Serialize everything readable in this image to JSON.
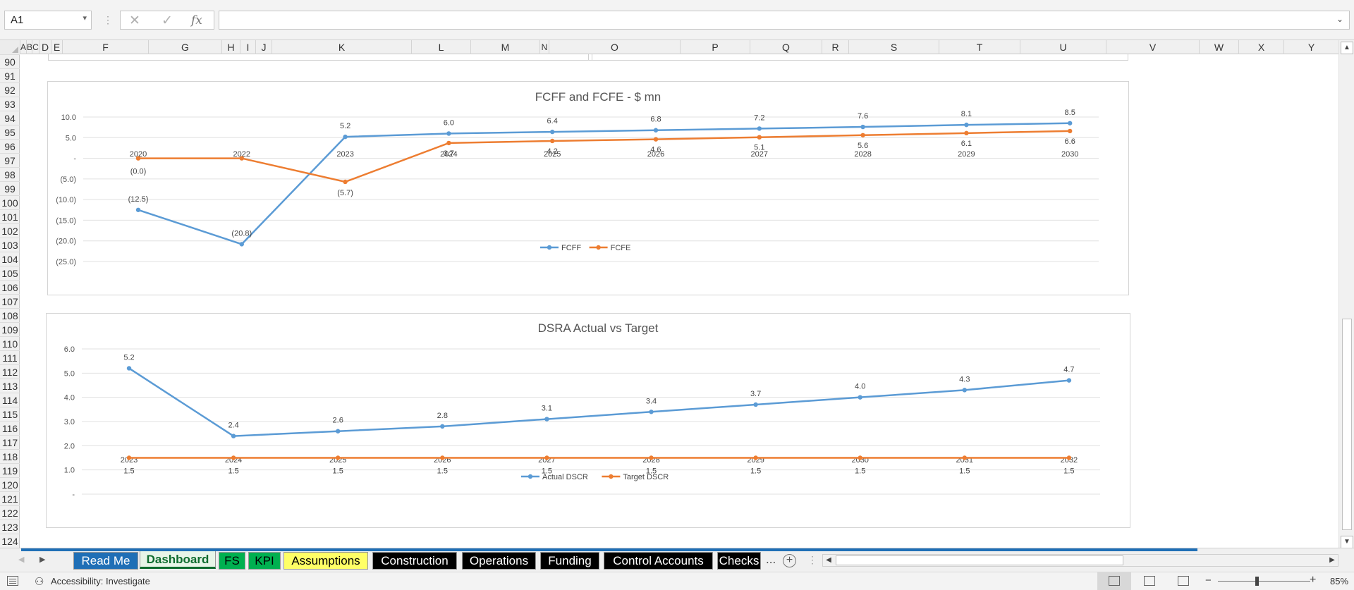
{
  "formula_bar": {
    "name_box": "A1",
    "cancel_glyph": "✕",
    "enter_glyph": "✓",
    "fx_label": "fx",
    "formula": ""
  },
  "columns": [
    "A",
    "B",
    "C",
    "D",
    "E",
    "F",
    "G",
    "H",
    "I",
    "J",
    "K",
    "L",
    "M",
    "N",
    "O",
    "P",
    "Q",
    "R",
    "S",
    "T",
    "U",
    "V",
    "W",
    "X",
    "Y"
  ],
  "rows": [
    "90",
    "91",
    "92",
    "93",
    "94",
    "95",
    "96",
    "97",
    "98",
    "99",
    "100",
    "101",
    "102",
    "103",
    "104",
    "105",
    "106",
    "107",
    "108",
    "109",
    "110",
    "111",
    "112",
    "113",
    "114",
    "115",
    "116",
    "117",
    "118",
    "119",
    "120",
    "121",
    "122",
    "123",
    "124"
  ],
  "charts": [
    {
      "title": "FCFF and FCFE - $ mn",
      "chart_data": {
        "type": "line",
        "title": "FCFF and FCFE - $ mn",
        "categories": [
          "2020",
          "2022",
          "2023",
          "2024",
          "2025",
          "2026",
          "2027",
          "2028",
          "2029",
          "2030"
        ],
        "series": [
          {
            "name": "FCFF",
            "color": "#5b9bd5",
            "values": [
              -12.5,
              -20.8,
              5.2,
              6.0,
              6.4,
              6.8,
              7.2,
              7.6,
              8.1,
              8.5
            ],
            "labels": [
              "(12.5)",
              "(20.8)",
              "5.2",
              "6.0",
              "6.4",
              "6.8",
              "7.2",
              "7.6",
              "8.1",
              "8.5"
            ]
          },
          {
            "name": "FCFE",
            "color": "#ed7d31",
            "values": [
              0,
              0,
              -5.7,
              3.7,
              4.2,
              4.6,
              5.1,
              5.6,
              6.1,
              6.6
            ],
            "labels": [
              "(0.0)",
              "",
              "(5.7)",
              "3.7",
              "4.2",
              "4.6",
              "5.1",
              "5.6",
              "6.1",
              "6.6"
            ]
          }
        ],
        "yticks": [
          10,
          5,
          0,
          -5,
          -10,
          -15,
          -20,
          -25
        ],
        "ytick_labels": [
          "10.0",
          "5.0",
          "-",
          "(5.0)",
          "(10.0)",
          "(15.0)",
          "(20.0)",
          "(25.0)"
        ],
        "ylim": [
          -25,
          10
        ],
        "grid": true,
        "legend": "bottom"
      }
    },
    {
      "title": "DSRA Actual vs Target",
      "chart_data": {
        "type": "line",
        "title": "DSRA Actual vs Target",
        "categories": [
          "2023",
          "2024",
          "2025",
          "2026",
          "2027",
          "2028",
          "2029",
          "2030",
          "2031",
          "2032"
        ],
        "series": [
          {
            "name": "Actual DSCR",
            "color": "#5b9bd5",
            "values": [
              5.2,
              2.4,
              2.6,
              2.8,
              3.1,
              3.4,
              3.7,
              4.0,
              4.3,
              4.7
            ],
            "labels": [
              "5.2",
              "2.4",
              "2.6",
              "2.8",
              "3.1",
              "3.4",
              "3.7",
              "4.0",
              "4.3",
              "4.7"
            ]
          },
          {
            "name": "Target DSCR",
            "color": "#ed7d31",
            "values": [
              1.5,
              1.5,
              1.5,
              1.5,
              1.5,
              1.5,
              1.5,
              1.5,
              1.5,
              1.5
            ],
            "labels": [
              "1.5",
              "1.5",
              "1.5",
              "1.5",
              "1.5",
              "1.5",
              "1.5",
              "1.5",
              "1.5",
              "1.5"
            ]
          }
        ],
        "yticks": [
          6,
          5,
          4,
          3,
          2,
          1,
          0
        ],
        "ytick_labels": [
          "6.0",
          "5.0",
          "4.0",
          "3.0",
          "2.0",
          "1.0",
          "-"
        ],
        "ylim": [
          0,
          6
        ],
        "grid": true,
        "legend": "bottom"
      }
    }
  ],
  "sheet_tabs": [
    {
      "label": "Read Me",
      "bg": "#1f6fb6",
      "fg": "#ffffff"
    },
    {
      "label": "Dashboard",
      "bg": "#e8f5e8",
      "fg": "#0e6b2e",
      "active": true
    },
    {
      "label": "FS",
      "bg": "#00b050",
      "fg": "#000000"
    },
    {
      "label": "KPI",
      "bg": "#00b050",
      "fg": "#000000"
    },
    {
      "label": "Assumptions",
      "bg": "#ffff66",
      "fg": "#000000"
    },
    {
      "label": "Construction",
      "bg": "#000000",
      "fg": "#ffffff"
    },
    {
      "label": "Operations",
      "bg": "#000000",
      "fg": "#ffffff"
    },
    {
      "label": "Funding",
      "bg": "#000000",
      "fg": "#ffffff"
    },
    {
      "label": "Control Accounts",
      "bg": "#000000",
      "fg": "#ffffff"
    },
    {
      "label": "Checks",
      "bg": "#000000",
      "fg": "#ffffff"
    }
  ],
  "tab_overflow": "...",
  "status_bar": {
    "accessibility": "Accessibility: Investigate",
    "zoom": "85%"
  }
}
